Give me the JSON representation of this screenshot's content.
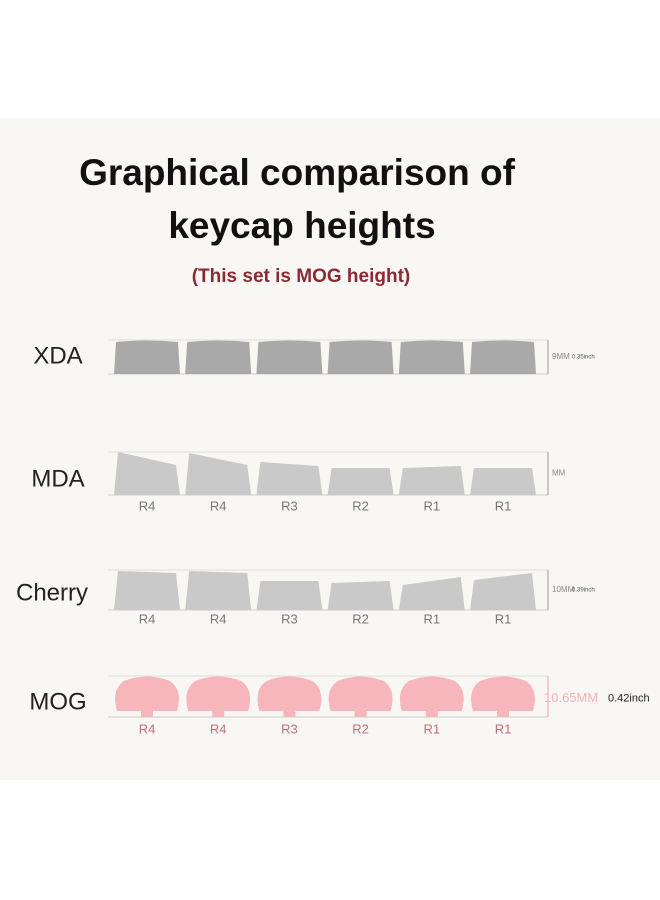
{
  "header": {
    "title_lines": [
      "Graphical comparison of",
      "keycap heights"
    ],
    "subtitle": "(This set is MOG height)"
  },
  "rows": [
    {
      "label": "XDA",
      "height_mm": "9MM",
      "height_inch": "0.35inch",
      "keys": []
    },
    {
      "label": "MDA",
      "height_mm": "MM",
      "keys": [
        "R4",
        "R4",
        "R3",
        "R2",
        "R1",
        "R1"
      ]
    },
    {
      "label": "Cherry",
      "height_mm": "10MM",
      "height_inch": "0.39inch",
      "keys": [
        "R4",
        "R4",
        "R3",
        "R2",
        "R1",
        "R1"
      ]
    },
    {
      "label": "MOG",
      "height_mm": "10.65MM",
      "height_inch": "0.42inch",
      "keys": [
        "R4",
        "R4",
        "R3",
        "R2",
        "R1",
        "R1"
      ]
    }
  ]
}
